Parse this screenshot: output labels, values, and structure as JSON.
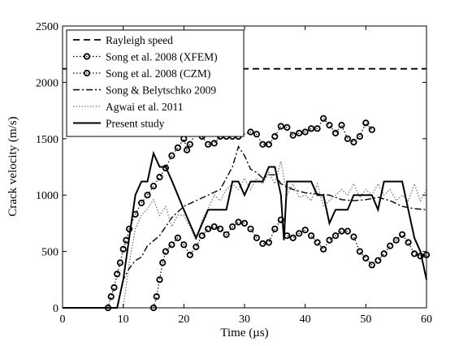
{
  "chart_data": {
    "type": "line",
    "xlabel": "Time (µs)",
    "ylabel": "Crack velocity (m/s)",
    "xlim": [
      0,
      60
    ],
    "ylim": [
      0,
      2500
    ],
    "xticks": [
      0,
      10,
      20,
      30,
      40,
      50,
      60
    ],
    "yticks": [
      0,
      500,
      1000,
      1500,
      2000,
      2500
    ],
    "xtick_labels": [
      "0",
      "10",
      "20",
      "30",
      "40",
      "50",
      "60"
    ],
    "ytick_labels": [
      "0",
      "500",
      "1000",
      "1500",
      "2000",
      "2500"
    ],
    "grid": false,
    "legend_position": "top-left",
    "series": [
      {
        "name": "Rayleigh speed",
        "style": "dashed",
        "color": "#000000",
        "x": [
          0,
          60
        ],
        "y": [
          2120,
          2120
        ]
      },
      {
        "name": "Song et al. 2008 (XFEM)",
        "style": "dotted-circle",
        "color": "#000000",
        "x": [
          7.5,
          8,
          8.5,
          9,
          9.5,
          10,
          10.5,
          11,
          12,
          13,
          14,
          15,
          16,
          17,
          18,
          19,
          20,
          20.5,
          21,
          22,
          23,
          24,
          25,
          26,
          27,
          28,
          29,
          31,
          32,
          33,
          34,
          35,
          36,
          37,
          38,
          39,
          40,
          41,
          42,
          43,
          44,
          45,
          46,
          47,
          48,
          49,
          50,
          51
        ],
        "y": [
          0,
          100,
          180,
          300,
          400,
          520,
          600,
          700,
          830,
          930,
          1000,
          1080,
          1160,
          1240,
          1350,
          1420,
          1500,
          1400,
          1450,
          1560,
          1520,
          1450,
          1460,
          1520,
          1520,
          1520,
          1520,
          1560,
          1540,
          1450,
          1450,
          1520,
          1610,
          1600,
          1530,
          1550,
          1560,
          1590,
          1590,
          1680,
          1620,
          1550,
          1620,
          1500,
          1470,
          1520,
          1640,
          1580
        ]
      },
      {
        "name": "Song et al. 2008 (CZM)",
        "style": "dotted-circle",
        "color": "#000000",
        "x": [
          15,
          15.5,
          16,
          16.5,
          17,
          18,
          19,
          20,
          21,
          22,
          23,
          24,
          25,
          26,
          27,
          28,
          29,
          30,
          31,
          32,
          33,
          34,
          35,
          36,
          37,
          38,
          39,
          40,
          41,
          42,
          43,
          44,
          45,
          46,
          47,
          48,
          49,
          50,
          51,
          52,
          53,
          54,
          55,
          56,
          57,
          58,
          59,
          60
        ],
        "y": [
          0,
          100,
          250,
          400,
          500,
          560,
          620,
          560,
          470,
          540,
          640,
          700,
          720,
          700,
          650,
          720,
          760,
          750,
          700,
          620,
          570,
          580,
          700,
          780,
          640,
          620,
          660,
          690,
          640,
          580,
          520,
          600,
          640,
          680,
          680,
          630,
          500,
          440,
          380,
          420,
          480,
          550,
          600,
          650,
          580,
          480,
          460,
          470
        ]
      },
      {
        "name": "Song & Belytschko 2009",
        "style": "dashdot",
        "color": "#000000",
        "x": [
          9,
          10,
          11,
          12,
          13,
          14,
          16,
          18,
          20,
          22,
          24,
          26,
          27,
          28,
          29,
          30,
          31,
          32,
          33,
          34,
          35,
          36,
          38,
          40,
          42,
          44,
          46,
          48,
          50,
          52,
          54,
          56,
          58,
          60
        ],
        "y": [
          0,
          250,
          350,
          420,
          450,
          550,
          640,
          800,
          900,
          950,
          1000,
          1050,
          1150,
          1250,
          1430,
          1350,
          1230,
          1200,
          1150,
          1180,
          1180,
          1100,
          1050,
          1020,
          1010,
          1000,
          960,
          950,
          960,
          980,
          950,
          900,
          880,
          870
        ]
      },
      {
        "name": "Agwai et al. 2011",
        "style": "dotted",
        "color": "#777777",
        "x": [
          10,
          11,
          12,
          13,
          14,
          15,
          16,
          17,
          18,
          19,
          20,
          21,
          22,
          23,
          24,
          25,
          26,
          27,
          28,
          29,
          30,
          31,
          32,
          33,
          34,
          35,
          36,
          37,
          38,
          39,
          40,
          41,
          42,
          43,
          44,
          45,
          46,
          47,
          48,
          49,
          50,
          51,
          52,
          53,
          54,
          55,
          56,
          57,
          58,
          59,
          60
        ],
        "y": [
          0,
          400,
          700,
          820,
          880,
          960,
          820,
          900,
          720,
          820,
          820,
          720,
          600,
          780,
          880,
          1000,
          950,
          1050,
          1100,
          1050,
          1150,
          1050,
          1150,
          1100,
          1200,
          1100,
          1300,
          1000,
          1100,
          980,
          1000,
          950,
          1100,
          900,
          950,
          1000,
          1050,
          1000,
          1100,
          980,
          1050,
          1000,
          1100,
          1000,
          1050,
          950,
          1000,
          950,
          1100,
          950,
          1050
        ]
      },
      {
        "name": "Present study",
        "style": "solid",
        "color": "#000000",
        "x": [
          0,
          9,
          10,
          12,
          13,
          14,
          15,
          16,
          17,
          18,
          20,
          22,
          24,
          26,
          27,
          28,
          29,
          30,
          31,
          32,
          33,
          34,
          35,
          36,
          36.5,
          37,
          38,
          39,
          40,
          41,
          42,
          43,
          44,
          45,
          46,
          47,
          48,
          49,
          50,
          51,
          52,
          53,
          54,
          55,
          56,
          57,
          58,
          59,
          60
        ],
        "y": [
          0,
          0,
          250,
          1000,
          1120,
          1120,
          1370,
          1250,
          1250,
          1130,
          870,
          620,
          870,
          870,
          870,
          1120,
          1120,
          1000,
          1120,
          1120,
          1120,
          1250,
          1250,
          1000,
          600,
          1120,
          1120,
          1120,
          1120,
          1120,
          1000,
          1000,
          750,
          870,
          870,
          870,
          1000,
          1000,
          1000,
          1000,
          870,
          1120,
          1120,
          1120,
          1120,
          870,
          620,
          500,
          250
        ]
      }
    ]
  }
}
